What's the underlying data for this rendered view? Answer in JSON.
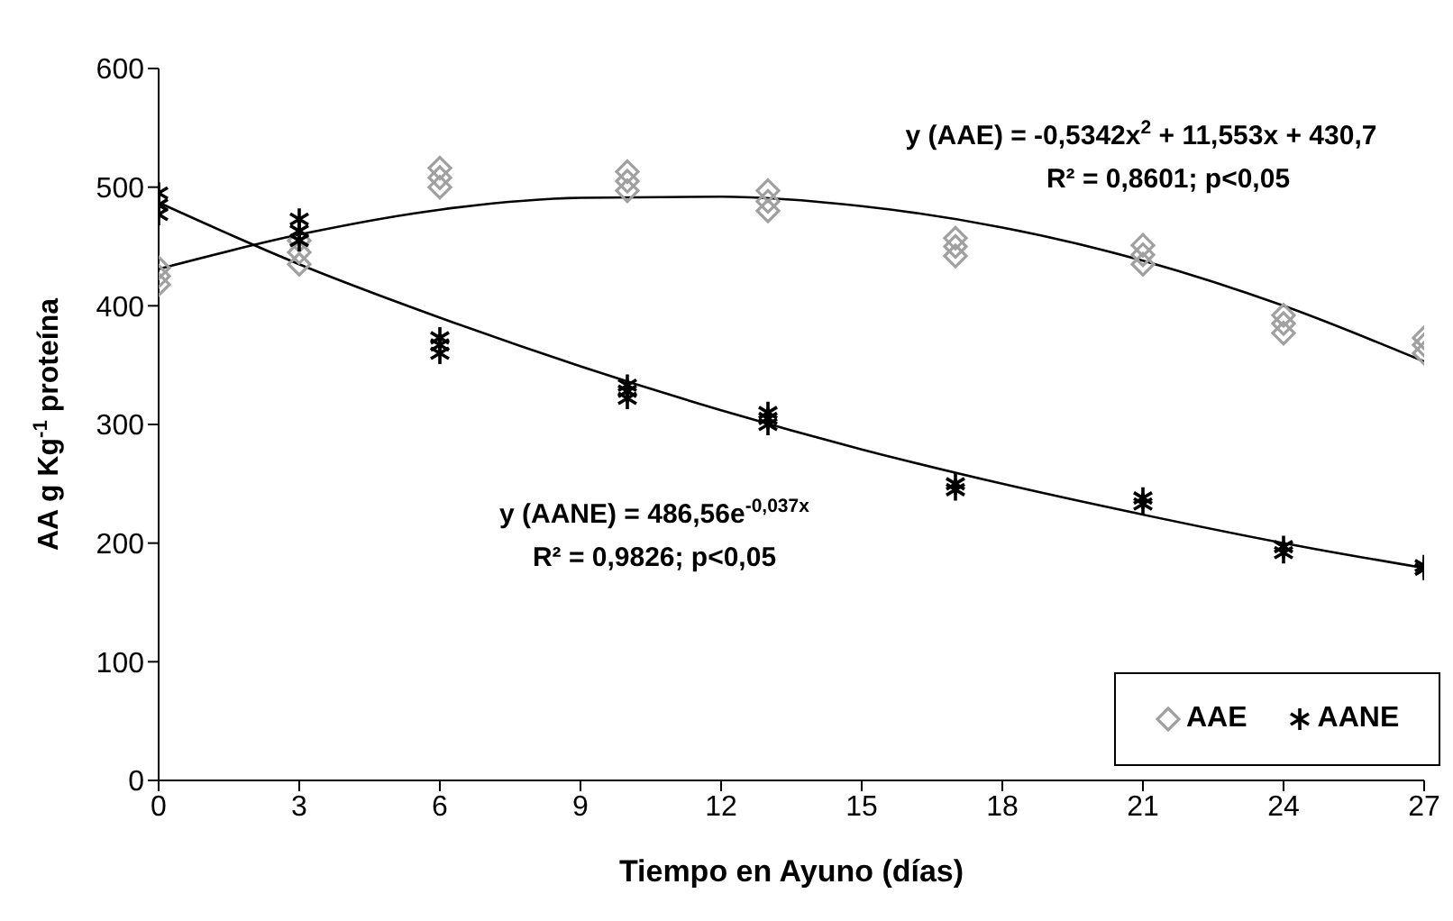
{
  "chart_data": {
    "type": "scatter",
    "xlabel": "Tiempo en Ayuno (días)",
    "ylabel": "AA g Kg$^{-1}$ proteína",
    "xlim": [
      0,
      27
    ],
    "xticks": [
      0,
      3,
      6,
      9,
      12,
      15,
      18,
      21,
      24,
      27
    ],
    "ylim": [
      0,
      600
    ],
    "yticks": [
      0,
      100,
      200,
      300,
      400,
      500,
      600
    ],
    "grid": false,
    "legend": "bottom right",
    "series": [
      {
        "name": "AAE",
        "color": "#a0a0a0",
        "marker": "diamond",
        "x": [
          0,
          0,
          0,
          3,
          3,
          3,
          6,
          6,
          6,
          10,
          10,
          10,
          13,
          13,
          13,
          17,
          17,
          17,
          21,
          21,
          21,
          24,
          24,
          24,
          27,
          27,
          27
        ],
        "values": [
          418,
          425,
          432,
          435,
          445,
          455,
          500,
          508,
          516,
          497,
          505,
          513,
          480,
          488,
          497,
          442,
          450,
          457,
          435,
          443,
          451,
          377,
          385,
          392,
          360,
          367,
          373
        ]
      },
      {
        "name": "AANE",
        "color": "#000000",
        "marker": "cross",
        "x": [
          0,
          0,
          0,
          3,
          3,
          3,
          6,
          6,
          6,
          10,
          10,
          10,
          13,
          13,
          13,
          17,
          17,
          21,
          21,
          24,
          24,
          27,
          27
        ],
        "values": [
          477,
          485,
          495,
          455,
          463,
          473,
          360,
          367,
          373,
          322,
          328,
          333,
          300,
          305,
          310,
          245,
          250,
          233,
          238,
          192,
          197,
          178,
          181
        ]
      },
      {
        "type": "line",
        "color": "#000000",
        "marker": "none",
        "x": [
          0,
          3,
          6,
          9,
          12,
          15,
          18,
          21,
          24,
          27
        ],
        "values": [
          431,
          460,
          481,
          491,
          492,
          484,
          466,
          438,
          400,
          353
        ]
      },
      {
        "type": "line",
        "color": "#000000",
        "marker": "none",
        "x": [
          0,
          3,
          6,
          9,
          12,
          15,
          18,
          21,
          24,
          27
        ],
        "values": [
          487,
          435,
          390,
          349,
          312,
          279,
          250,
          224,
          200,
          179
        ]
      }
    ],
    "annotations": [
      "y (AAE) = -0,5342x$^{2}$ + 11,553x + 430,7",
      "R² = 0,8601; p<0,05",
      "y (AANE) = 486,56e$^{-0,037x}$",
      "R² = 0,9826; p<0,05"
    ]
  }
}
